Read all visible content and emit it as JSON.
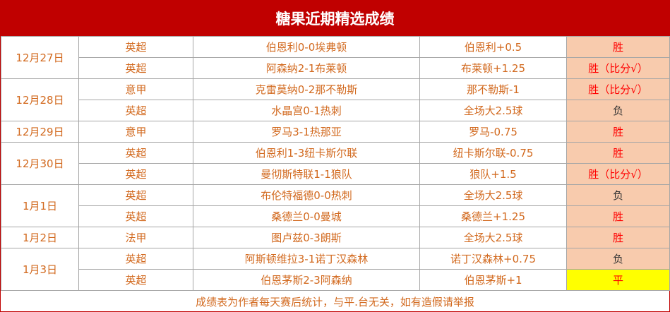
{
  "title": "糖果近期精选成绩",
  "table": {
    "groups": [
      {
        "date": "12月27日",
        "rows": [
          {
            "league": "英超",
            "match": "伯恩利0-0埃弗顿",
            "pick": "伯恩利+0.5",
            "result": "胜",
            "result_color": "#ff0000",
            "result_bg": "#f8cbad"
          },
          {
            "league": "英超",
            "match": "阿森纳2-1布莱顿",
            "pick": "布莱顿+1.25",
            "result": "胜（比分√）",
            "result_color": "#ff0000",
            "result_bg": "#f8cbad"
          }
        ]
      },
      {
        "date": "12月28日",
        "rows": [
          {
            "league": "意甲",
            "match": "克雷莫纳0-2那不勒斯",
            "pick": "那不勒斯-1",
            "result": "胜（比分√）",
            "result_color": "#ff0000",
            "result_bg": "#f8cbad"
          },
          {
            "league": "英超",
            "match": "水晶宫0-1热刺",
            "pick": "全场大2.5球",
            "result": "负",
            "result_color": "#333333",
            "result_bg": "#f8cbad"
          }
        ]
      },
      {
        "date": "12月29日",
        "rows": [
          {
            "league": "意甲",
            "match": "罗马3-1热那亚",
            "pick": "罗马-0.75",
            "result": "胜",
            "result_color": "#ff0000",
            "result_bg": "#f8cbad"
          }
        ]
      },
      {
        "date": "12月30日",
        "rows": [
          {
            "league": "英超",
            "match": "伯恩利1-3纽卡斯尔联",
            "pick": "纽卡斯尔联-0.75",
            "result": "胜",
            "result_color": "#ff0000",
            "result_bg": "#f8cbad"
          },
          {
            "league": "英超",
            "match": "曼彻斯特联1-1狼队",
            "pick": "狼队+1.5",
            "result": "胜（比分√）",
            "result_color": "#ff0000",
            "result_bg": "#f8cbad"
          }
        ]
      },
      {
        "date": "1月1日",
        "rows": [
          {
            "league": "英超",
            "match": "布伦特福德0-0热刺",
            "pick": "全场大2.5球",
            "result": "负",
            "result_color": "#333333",
            "result_bg": "#f8cbad"
          },
          {
            "league": "英超",
            "match": "桑德兰0-0曼城",
            "pick": "桑德兰+1.25",
            "result": "胜",
            "result_color": "#ff0000",
            "result_bg": "#f8cbad"
          }
        ]
      },
      {
        "date": "1月2日",
        "rows": [
          {
            "league": "法甲",
            "match": "图卢兹0-3朗斯",
            "pick": "全场大2.5球",
            "result": "胜",
            "result_color": "#ff0000",
            "result_bg": "#f8cbad"
          }
        ]
      },
      {
        "date": "1月3日",
        "rows": [
          {
            "league": "英超",
            "match": "阿斯顿维拉3-1诺丁汉森林",
            "pick": "诺丁汉森林+0.75",
            "result": "负",
            "result_color": "#333333",
            "result_bg": "#f8cbad"
          },
          {
            "league": "英超",
            "match": "伯恩茅斯2-3阿森纳",
            "pick": "伯恩茅斯+1",
            "result": "平",
            "result_color": "#ff0000",
            "result_bg": "#ffff00"
          }
        ]
      }
    ]
  },
  "footer": "成绩表为作者每天赛后统计，与平.台无关，如有造假请举报"
}
